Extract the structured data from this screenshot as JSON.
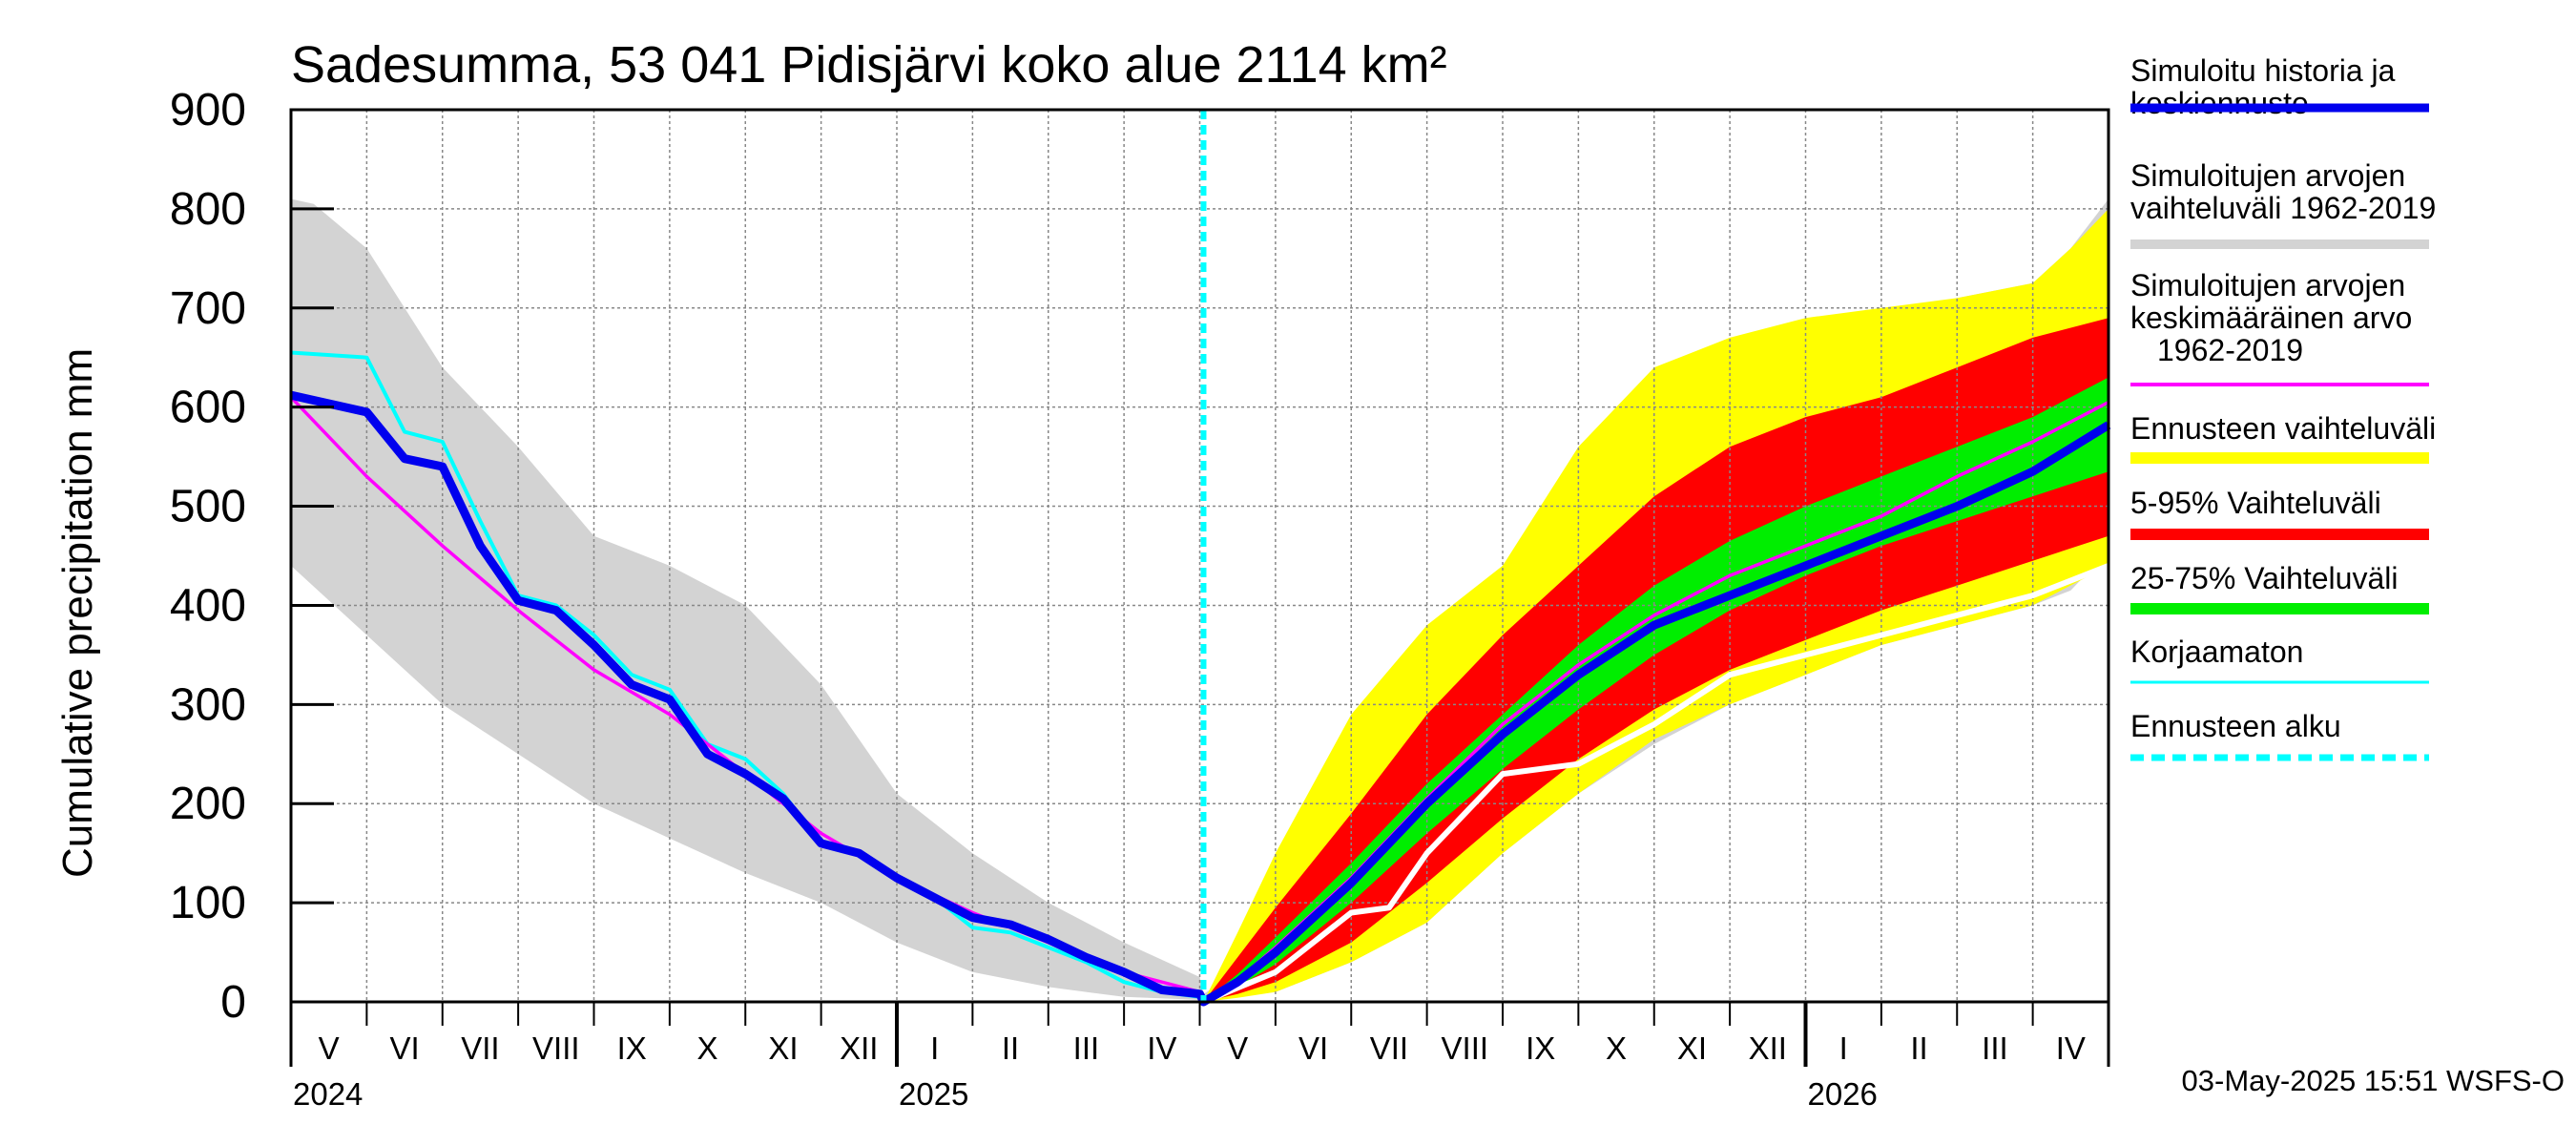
{
  "chart_data": {
    "type": "area",
    "title": "Sadesumma, 53 041 Pidisjärvi koko alue 2114 km²",
    "ylabel": "Cumulative precipitation   mm",
    "ylim": [
      0,
      900
    ],
    "yticks": [
      0,
      100,
      200,
      300,
      400,
      500,
      600,
      700,
      800,
      900
    ],
    "x_unit": "months since 2024-05-01",
    "xlim": [
      0,
      24
    ],
    "forecast_start": 12.05,
    "months": [
      "V",
      "VI",
      "VII",
      "VIII",
      "IX",
      "X",
      "XI",
      "XII",
      "I",
      "II",
      "III",
      "IV",
      "V",
      "VI",
      "VII",
      "VIII",
      "IX",
      "X",
      "XI",
      "XII",
      "I",
      "II",
      "III",
      "IV"
    ],
    "years": [
      {
        "label": "2024",
        "x": 0
      },
      {
        "label": "2025",
        "x": 8
      },
      {
        "label": "2026",
        "x": 20
      }
    ],
    "series": [
      {
        "name": "hist_range_upper",
        "x": [
          0,
          0.3,
          1,
          1.5,
          2,
          3,
          4,
          5,
          6,
          7,
          8,
          9,
          10,
          11,
          12,
          12.05,
          12.5,
          13,
          14,
          15,
          16,
          17,
          18,
          19,
          20,
          21,
          22,
          23,
          23.5,
          24
        ],
        "y": [
          810,
          805,
          760,
          700,
          640,
          560,
          470,
          440,
          400,
          320,
          210,
          150,
          100,
          60,
          25,
          8,
          30,
          80,
          180,
          310,
          430,
          540,
          610,
          650,
          670,
          690,
          710,
          725,
          760,
          810
        ]
      },
      {
        "name": "hist_range_lower",
        "x": [
          0,
          1,
          2,
          3,
          4,
          5,
          6,
          7,
          8,
          9,
          10,
          11,
          12,
          12.05,
          12.5,
          13,
          14,
          15,
          16,
          17,
          18,
          19,
          20,
          21,
          22,
          23,
          23.5,
          24
        ],
        "y": [
          440,
          370,
          300,
          250,
          200,
          165,
          130,
          100,
          60,
          30,
          15,
          5,
          2,
          0,
          5,
          10,
          40,
          80,
          150,
          210,
          260,
          300,
          330,
          360,
          380,
          400,
          415,
          455
        ]
      },
      {
        "name": "forecast_range_upper",
        "x": [
          12.05,
          12.5,
          13,
          14,
          15,
          16,
          17,
          18,
          19,
          20,
          21,
          22,
          23,
          23.5,
          24
        ],
        "y": [
          0,
          70,
          150,
          290,
          380,
          440,
          560,
          640,
          670,
          690,
          700,
          710,
          725,
          760,
          800
        ]
      },
      {
        "name": "forecast_range_lower",
        "x": [
          12.05,
          12.5,
          13,
          14,
          15,
          16,
          17,
          18,
          19,
          20,
          21,
          22,
          23,
          24
        ],
        "y": [
          0,
          4,
          10,
          40,
          80,
          150,
          210,
          265,
          300,
          330,
          360,
          380,
          400,
          440
        ]
      },
      {
        "name": "p95",
        "x": [
          12.05,
          12.5,
          13,
          14,
          15,
          16,
          17,
          18,
          19,
          20,
          21,
          22,
          23,
          24
        ],
        "y": [
          0,
          45,
          95,
          190,
          290,
          370,
          440,
          510,
          560,
          590,
          610,
          640,
          670,
          690
        ]
      },
      {
        "name": "p5",
        "x": [
          12.05,
          12.5,
          13,
          14,
          15,
          16,
          17,
          18,
          19,
          20,
          21,
          22,
          23,
          24
        ],
        "y": [
          0,
          8,
          20,
          60,
          120,
          185,
          245,
          295,
          335,
          365,
          395,
          420,
          445,
          470
        ]
      },
      {
        "name": "p75",
        "x": [
          12.05,
          12.5,
          13,
          14,
          15,
          16,
          17,
          18,
          19,
          20,
          21,
          22,
          23,
          24
        ],
        "y": [
          0,
          28,
          65,
          140,
          220,
          290,
          360,
          420,
          465,
          500,
          530,
          560,
          590,
          630
        ]
      },
      {
        "name": "p25",
        "x": [
          12.05,
          12.5,
          13,
          14,
          15,
          16,
          17,
          18,
          19,
          20,
          21,
          22,
          23,
          24
        ],
        "y": [
          0,
          15,
          38,
          100,
          170,
          235,
          295,
          350,
          395,
          430,
          460,
          485,
          510,
          535
        ]
      },
      {
        "name": "Simuloitu historia ja keskiennuste",
        "x": [
          0,
          1,
          1.5,
          2,
          2.5,
          3,
          3.5,
          4,
          4.5,
          5,
          5.5,
          6,
          6.5,
          7,
          7.5,
          8,
          8.5,
          9,
          9.5,
          10,
          10.5,
          11,
          11.5,
          12,
          12.05,
          12.5,
          13,
          14,
          15,
          16,
          17,
          18,
          19,
          20,
          21,
          22,
          23,
          24
        ],
        "y": [
          612,
          595,
          548,
          540,
          460,
          405,
          395,
          360,
          320,
          305,
          250,
          230,
          205,
          160,
          150,
          125,
          105,
          85,
          78,
          63,
          45,
          30,
          12,
          8,
          0,
          20,
          50,
          120,
          200,
          270,
          330,
          380,
          410,
          440,
          470,
          500,
          535,
          582
        ]
      },
      {
        "name": "Simuloitujen arvojen keskimääräinen arvo 1962-2019",
        "x": [
          0,
          0.5,
          1,
          2,
          3,
          4,
          5,
          6,
          7,
          8,
          9,
          10,
          11,
          12,
          12.05,
          12.5,
          13,
          14,
          15,
          16,
          17,
          18,
          19,
          20,
          21,
          22,
          23,
          24
        ],
        "y": [
          610,
          570,
          530,
          460,
          395,
          335,
          290,
          230,
          170,
          125,
          90,
          60,
          30,
          10,
          0,
          22,
          55,
          125,
          205,
          280,
          340,
          390,
          430,
          460,
          490,
          530,
          565,
          605
        ]
      },
      {
        "name": "Korjaamaton",
        "x": [
          0,
          1,
          1.5,
          2,
          2.5,
          3,
          3.5,
          4,
          4.5,
          5,
          5.5,
          6,
          6.5,
          7,
          7.5,
          8,
          8.5,
          9,
          9.5,
          10,
          10.5,
          11,
          11.5,
          12
        ],
        "y": [
          655,
          650,
          575,
          565,
          485,
          410,
          400,
          370,
          330,
          315,
          260,
          245,
          210,
          160,
          150,
          125,
          105,
          75,
          70,
          55,
          40,
          20,
          10,
          5
        ]
      },
      {
        "name": "hist_lower_white",
        "x": [
          12.05,
          13,
          14,
          14.5,
          15,
          16,
          17,
          17.5,
          18,
          19,
          20,
          21,
          22,
          23,
          24
        ],
        "y": [
          0,
          30,
          90,
          95,
          150,
          230,
          240,
          260,
          280,
          330,
          350,
          370,
          390,
          410,
          440
        ]
      }
    ],
    "legend": {
      "placement": "right",
      "items": [
        {
          "label": "Simuloitu historia ja keskiennuste",
          "color": "#0000ee"
        },
        {
          "label": "Simuloitujen arvojen vaihteluväli 1962-2019",
          "color": "#d3d3d3"
        },
        {
          "label": "Simuloitujen arvojen keskimääräinen arvo 1962-2019",
          "color": "#ff00ff"
        },
        {
          "label": "Ennusteen vaihteluväli",
          "color": "#ffff00"
        },
        {
          "label": "5-95% Vaihteluväli",
          "color": "#ff0000"
        },
        {
          "label": "25-75% Vaihteluväli",
          "color": "#00ee00"
        },
        {
          "label": "Korjaamaton",
          "color": "#00ffff"
        },
        {
          "label": "Ennusteen alku",
          "color": "#00ffff"
        }
      ]
    },
    "footer": "03-May-2025 15:51 WSFS-O"
  },
  "legend_lines": {
    "item0": [
      "Simuloitu historia ja",
      "keskiennuste"
    ],
    "item1": [
      "Simuloitujen arvojen",
      "vaihteluväli 1962-2019"
    ],
    "item2": [
      "Simuloitujen arvojen",
      "keskimääräinen arvo",
      "1962-2019"
    ],
    "item3": [
      "Ennusteen vaihteluväli"
    ],
    "item4": [
      "5-95% Vaihteluväli"
    ],
    "item5": [
      "25-75% Vaihteluväli"
    ],
    "item6": [
      "Korjaamaton"
    ],
    "item7": [
      "Ennusteen alku"
    ]
  },
  "colors": {
    "hist_range": "#d3d3d3",
    "forecast_range": "#ffff00",
    "p5_95": "#ff0000",
    "p25_75": "#00ee00",
    "mean": "#0000ee",
    "avg": "#ff00ff",
    "uncorrected": "#00ffff",
    "forecast_start": "#00ffff",
    "grid": "#888888"
  }
}
